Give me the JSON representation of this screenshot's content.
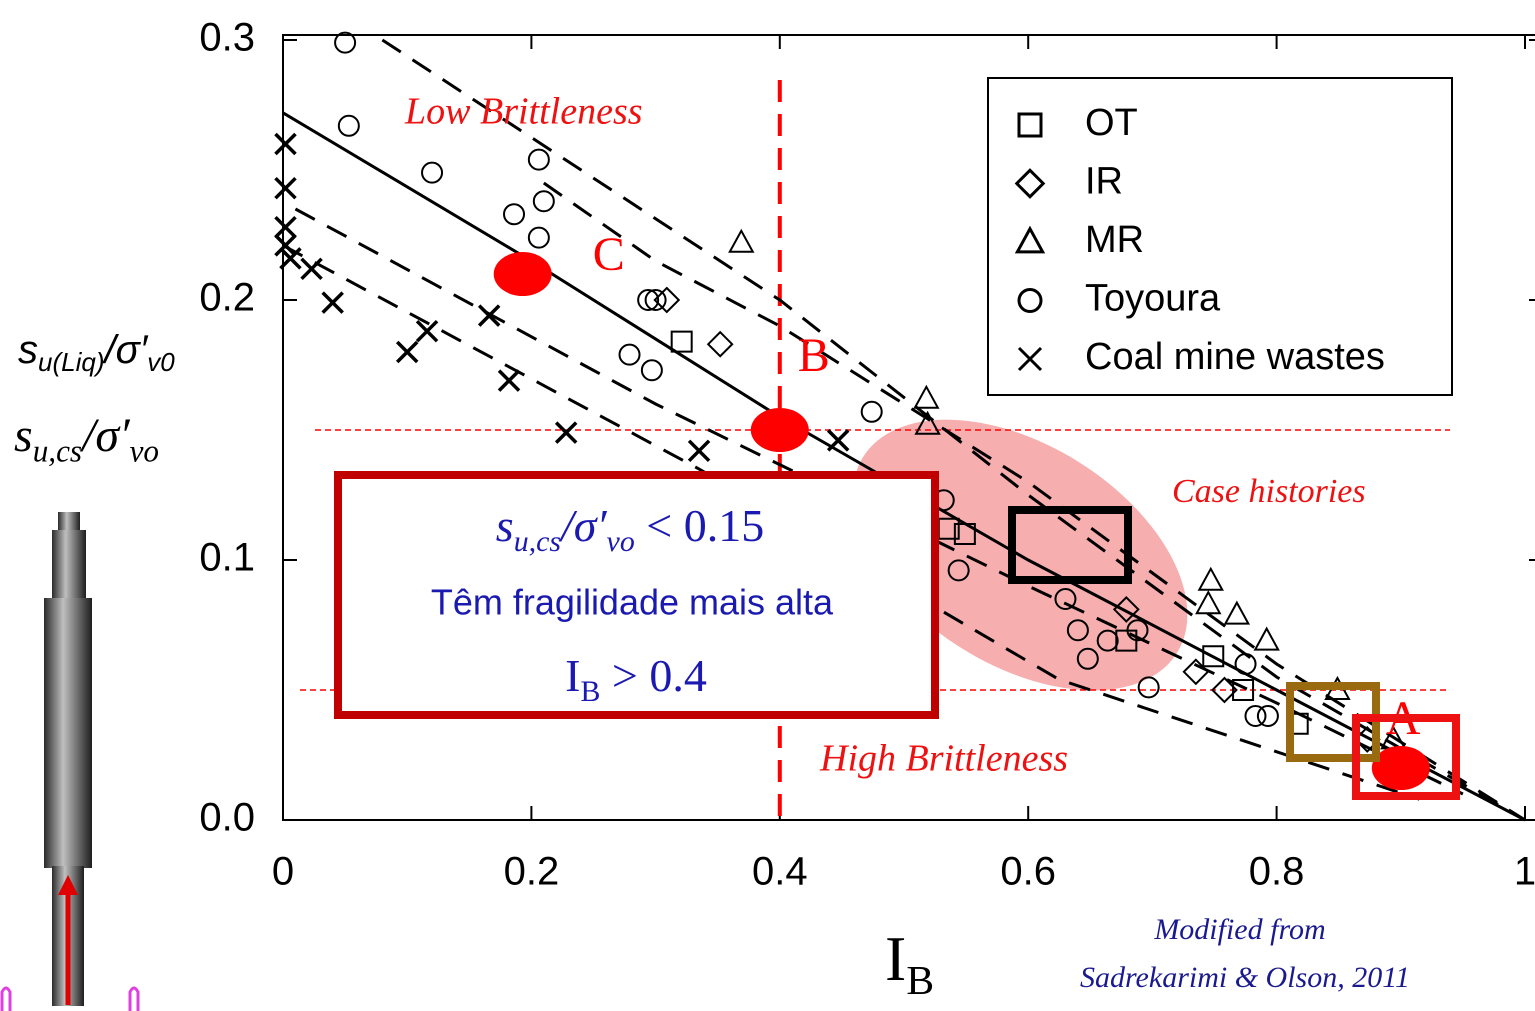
{
  "chart_data": {
    "type": "scatter",
    "xlim": [
      0,
      1
    ],
    "ylim": [
      0,
      0.3
    ],
    "xticks": [
      0,
      0.2,
      0.4,
      0.6,
      0.8,
      1
    ],
    "yticks": [
      {
        "value": 0,
        "label": "0.0"
      },
      0.1,
      0.2,
      0.3
    ],
    "x_label": [
      {
        "text": "I"
      },
      {
        "text": "B",
        "sub": true
      }
    ],
    "y_labels": [
      [
        {
          "text": "s",
          "italic": true
        },
        {
          "text": "u(Liq)",
          "sub": true,
          "italic": true
        },
        {
          "text": "/σ′",
          "italic": true
        },
        {
          "text": "v0",
          "sub": true,
          "italic": true
        }
      ],
      [
        {
          "text": "s",
          "italic": true
        },
        {
          "text": "u,cs",
          "sub": true,
          "italic": true
        },
        {
          "text": "/σ′",
          "italic": true
        },
        {
          "text": "vo",
          "sub": true,
          "italic": true
        }
      ]
    ],
    "series": [
      {
        "name": "OT",
        "marker": "square",
        "color": "#000000",
        "x": [
          0.321,
          0.536,
          0.549,
          0.679,
          0.749,
          0.773,
          0.817
        ],
        "y": [
          0.184,
          0.112,
          0.11,
          0.069,
          0.063,
          0.05,
          0.037
        ]
      },
      {
        "name": "IR",
        "marker": "diamond",
        "color": "#000000",
        "x": [
          0.309,
          0.352,
          0.679,
          0.735,
          0.758,
          0.873
        ],
        "y": [
          0.2,
          0.183,
          0.081,
          0.057,
          0.05,
          0.031
        ]
      },
      {
        "name": "MR",
        "marker": "triangle",
        "color": "#000000",
        "x": [
          0.369,
          0.518,
          0.519,
          0.747,
          0.745,
          0.768,
          0.792,
          0.849,
          0.894
        ],
        "y": [
          0.222,
          0.162,
          0.152,
          0.092,
          0.083,
          0.079,
          0.069,
          0.05,
          0.031
        ]
      },
      {
        "name": "Toyoura",
        "marker": "circle",
        "color": "#000000",
        "x": [
          0.05,
          0.053,
          0.12,
          0.186,
          0.21,
          0.206,
          0.206,
          0.279,
          0.297,
          0.294,
          0.3,
          0.474,
          0.532,
          0.544,
          0.63,
          0.64,
          0.664,
          0.648,
          0.688,
          0.697,
          0.775,
          0.783,
          0.793
        ],
        "y": [
          0.299,
          0.267,
          0.249,
          0.233,
          0.238,
          0.254,
          0.224,
          0.179,
          0.173,
          0.2,
          0.2,
          0.157,
          0.123,
          0.096,
          0.085,
          0.073,
          0.069,
          0.062,
          0.073,
          0.051,
          0.06,
          0.04,
          0.04
        ]
      },
      {
        "name": "Coal mine wastes",
        "marker": "x",
        "color": "#000000",
        "x": [
          0.002,
          0.002,
          0.002,
          0.002,
          0.006,
          0.023,
          0.04,
          0.1,
          0.116,
          0.166,
          0.182,
          0.228,
          0.335,
          0.447
        ],
        "y": [
          0.26,
          0.243,
          0.228,
          0.221,
          0.216,
          0.212,
          0.199,
          0.18,
          0.188,
          0.194,
          0.169,
          0.149,
          0.142,
          0.146
        ]
      }
    ],
    "trend_lines": [
      {
        "style": "solid",
        "x": [
          0,
          0.2,
          0.4,
          0.6,
          0.8,
          1
        ],
        "y": [
          0.272,
          0.215,
          0.155,
          0.1,
          0.05,
          0
        ]
      },
      {
        "style": "dashed",
        "x": [
          0.08,
          0.4,
          0.6,
          0.8,
          1
        ],
        "y": [
          0.3,
          0.2,
          0.125,
          0.055,
          0
        ]
      },
      {
        "style": "dashed",
        "x": [
          0.21,
          0.3,
          0.4,
          0.6,
          0.8,
          1
        ],
        "y": [
          0.245,
          0.215,
          0.19,
          0.13,
          0.06,
          0
        ]
      },
      {
        "style": "dashed",
        "x": [
          0,
          0.335,
          0.625,
          0.915
        ],
        "y": [
          0.221,
          0.135,
          0.054,
          0.008
        ]
      },
      {
        "style": "dashed",
        "x": [
          0.01,
          0.3,
          0.6,
          0.8,
          0.95
        ],
        "y": [
          0.235,
          0.16,
          0.09,
          0.045,
          0.01
        ]
      }
    ],
    "reference_lines": {
      "color": "#ff0000",
      "y": [
        0.15,
        0.05
      ],
      "x": [
        0.4
      ]
    },
    "highlight_points": {
      "color": "#ff0000",
      "labels": [
        "C",
        "B",
        "A"
      ],
      "x": [
        0.193,
        0.4,
        0.9
      ],
      "y": [
        0.21,
        0.15,
        0.02
      ]
    },
    "annotations": {
      "low": "Low Brittleness",
      "high": "High Brittleness",
      "cases": "Case histories",
      "source_1": "Modified from",
      "source_2": "Sadrekarimi & Olson, 2011"
    },
    "callout": {
      "line_1": [
        {
          "text": "s",
          "italic": true
        },
        {
          "text": "u,cs",
          "sub": true,
          "italic": true
        },
        {
          "text": "/σ′",
          "italic": true
        },
        {
          "text": "vo",
          "sub": true,
          "italic": true
        },
        {
          "text": " < 0.15"
        }
      ],
      "line_2": "Têm fragilidade mais alta",
      "line_3": [
        {
          "text": "I"
        },
        {
          "text": "B",
          "sub": true
        },
        {
          "text": " > 0.4"
        }
      ]
    }
  }
}
